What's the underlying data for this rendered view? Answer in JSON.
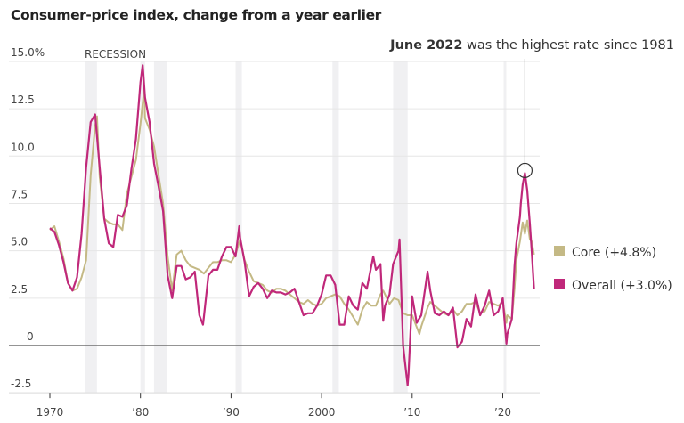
{
  "chart_data": {
    "type": "line",
    "title": "Consumer-price index, change from a year earlier",
    "ylim": [
      -2.5,
      15
    ],
    "xlim": [
      1969.5,
      2024
    ],
    "y_ticks": [
      {
        "value": 15,
        "label": "15.0%"
      },
      {
        "value": 12.5,
        "label": "12.5"
      },
      {
        "value": 10,
        "label": "10.0"
      },
      {
        "value": 7.5,
        "label": "7.5"
      },
      {
        "value": 5,
        "label": "5.0"
      },
      {
        "value": 2.5,
        "label": "2.5"
      },
      {
        "value": 0,
        "label": "0"
      },
      {
        "value": -2.5,
        "label": "-2.5"
      }
    ],
    "x_ticks": [
      {
        "value": 1970,
        "label": "1970"
      },
      {
        "value": 1980,
        "label": "’80"
      },
      {
        "value": 1990,
        "label": "’90"
      },
      {
        "value": 2000,
        "label": "2000"
      },
      {
        "value": 2010,
        "label": "’10"
      },
      {
        "value": 2020,
        "label": "’20"
      }
    ],
    "grid": true,
    "recession_label": "RECESSION",
    "recessions": [
      [
        1973.9,
        1975.2
      ],
      [
        1980.0,
        1980.5
      ],
      [
        1981.5,
        1982.9
      ],
      [
        1990.5,
        1991.2
      ],
      [
        2001.2,
        2001.9
      ],
      [
        2007.9,
        2009.5
      ],
      [
        2020.1,
        2020.3
      ]
    ],
    "annotation": {
      "bold": "June 2022",
      "text": " was the highest rate since 1981",
      "x": 2022.45,
      "y": 9.1
    },
    "legend_placement": "right",
    "series": [
      {
        "name": "Core (+4.8%)",
        "color": "#c4b985",
        "x": [
          1970,
          1970.5,
          1971,
          1971.5,
          1972,
          1972.5,
          1973,
          1973.5,
          1974,
          1974.5,
          1975,
          1975.2,
          1975.5,
          1976,
          1976.5,
          1977,
          1977.5,
          1978,
          1978.5,
          1979,
          1979.5,
          1980,
          1980.4,
          1980.5,
          1981,
          1981.5,
          1982,
          1982.5,
          1983,
          1983.5,
          1984,
          1984.5,
          1985,
          1985.5,
          1986,
          1986.5,
          1987,
          1987.5,
          1988,
          1988.5,
          1989,
          1989.5,
          1990,
          1990.5,
          1991,
          1991.5,
          1992,
          1992.5,
          1993,
          1993.5,
          1994,
          1994.5,
          1995,
          1995.5,
          1996,
          1996.5,
          1997,
          1997.5,
          1998,
          1998.5,
          1999,
          1999.5,
          2000,
          2000.5,
          2001,
          2001.5,
          2002,
          2002.5,
          2003,
          2003.5,
          2004,
          2004.5,
          2005,
          2005.5,
          2006,
          2006.5,
          2006.8,
          2007,
          2007.5,
          2008,
          2008.5,
          2009,
          2009.5,
          2010,
          2010.8,
          2011,
          2011.7,
          2012,
          2012.5,
          2013,
          2013.5,
          2014,
          2014.5,
          2015,
          2015.5,
          2016,
          2016.5,
          2017,
          2017.5,
          2018,
          2018.5,
          2019,
          2019.5,
          2020,
          2020.4,
          2020.5,
          2021,
          2021.3,
          2021.5,
          2021.9,
          2022.2,
          2022.45,
          2022.7,
          2023,
          2023.2,
          2023.45
        ],
        "values": [
          6.1,
          6.3,
          5.5,
          4.6,
          3.3,
          2.9,
          3.0,
          3.6,
          4.5,
          9.0,
          11.6,
          12.1,
          8.9,
          6.7,
          6.5,
          6.4,
          6.4,
          6.1,
          8.0,
          8.9,
          9.8,
          11.7,
          13.5,
          12.0,
          11.4,
          10.5,
          9.0,
          7.5,
          4.7,
          2.9,
          4.8,
          5.0,
          4.5,
          4.2,
          4.1,
          4.0,
          3.8,
          4.1,
          4.4,
          4.4,
          4.5,
          4.5,
          4.4,
          4.8,
          5.6,
          4.5,
          3.9,
          3.4,
          3.3,
          3.2,
          2.9,
          2.8,
          3.0,
          3.0,
          2.9,
          2.7,
          2.5,
          2.3,
          2.2,
          2.4,
          2.2,
          2.1,
          2.2,
          2.5,
          2.6,
          2.7,
          2.6,
          2.2,
          1.9,
          1.5,
          1.1,
          1.9,
          2.3,
          2.1,
          2.1,
          2.7,
          2.9,
          2.7,
          2.2,
          2.5,
          2.4,
          1.7,
          1.6,
          1.6,
          0.6,
          1.0,
          2.0,
          2.3,
          2.1,
          1.9,
          1.7,
          1.6,
          1.9,
          1.6,
          1.8,
          2.2,
          2.2,
          2.3,
          1.7,
          1.8,
          2.3,
          2.2,
          2.1,
          2.3,
          1.2,
          1.6,
          1.4,
          3.0,
          4.5,
          5.5,
          6.5,
          5.9,
          6.6,
          5.6,
          5.5,
          4.8
        ]
      },
      {
        "name": "Overall (+3.0%)",
        "color": "#c0287a",
        "x": [
          1970,
          1970.5,
          1971,
          1971.5,
          1972,
          1972.5,
          1973,
          1973.5,
          1974,
          1974.5,
          1975,
          1975.5,
          1976,
          1976.5,
          1977,
          1977.5,
          1978,
          1978.5,
          1979,
          1979.5,
          1980,
          1980.25,
          1980.5,
          1981,
          1981.5,
          1982,
          1982.5,
          1983,
          1983.5,
          1984,
          1984.5,
          1985,
          1985.5,
          1986,
          1986.5,
          1986.9,
          1987,
          1987.5,
          1988,
          1988.5,
          1989,
          1989.5,
          1990,
          1990.5,
          1990.9,
          1991,
          1991.5,
          1992,
          1992.5,
          1993,
          1993.5,
          1994,
          1994.5,
          1995,
          1995.5,
          1996,
          1996.5,
          1997,
          1997.5,
          1998,
          1998.5,
          1999,
          1999.5,
          2000,
          2000.5,
          2001,
          2001.5,
          2002,
          2002.5,
          2003,
          2003.5,
          2004,
          2004.5,
          2005,
          2005.7,
          2006,
          2006.5,
          2006.8,
          2007,
          2007.5,
          2007.9,
          2008.5,
          2008.6,
          2009,
          2009.5,
          2009.6,
          2010,
          2010.5,
          2011,
          2011.7,
          2012,
          2012.5,
          2013,
          2013.5,
          2014,
          2014.5,
          2015,
          2015.5,
          2016,
          2016.5,
          2017,
          2017.5,
          2018,
          2018.5,
          2019,
          2019.5,
          2020,
          2020.4,
          2020.5,
          2021,
          2021.3,
          2021.5,
          2021.9,
          2022,
          2022.2,
          2022.45,
          2022.7,
          2023,
          2023.2,
          2023.45
        ],
        "values": [
          6.2,
          6.0,
          5.3,
          4.4,
          3.3,
          2.9,
          3.6,
          5.9,
          9.4,
          11.8,
          12.2,
          9.4,
          6.7,
          5.4,
          5.2,
          6.9,
          6.8,
          7.4,
          9.3,
          10.9,
          13.9,
          14.8,
          13.1,
          11.8,
          9.6,
          8.4,
          7.1,
          3.7,
          2.5,
          4.2,
          4.2,
          3.5,
          3.6,
          3.9,
          1.6,
          1.1,
          1.5,
          3.7,
          4.0,
          4.0,
          4.7,
          5.2,
          5.2,
          4.7,
          6.3,
          5.7,
          4.4,
          2.6,
          3.1,
          3.3,
          3.0,
          2.5,
          2.9,
          2.8,
          2.8,
          2.7,
          2.8,
          3.0,
          2.3,
          1.6,
          1.7,
          1.7,
          2.1,
          2.7,
          3.7,
          3.7,
          3.2,
          1.1,
          1.1,
          2.6,
          2.1,
          1.9,
          3.3,
          3.0,
          4.7,
          4.0,
          4.3,
          1.3,
          2.1,
          2.7,
          4.3,
          5.0,
          5.6,
          0.0,
          -2.1,
          -1.5,
          2.6,
          1.2,
          1.6,
          3.9,
          2.9,
          1.7,
          1.6,
          1.8,
          1.6,
          2.0,
          -0.1,
          0.2,
          1.4,
          1.0,
          2.7,
          1.6,
          2.1,
          2.9,
          1.6,
          1.8,
          2.5,
          0.1,
          0.6,
          1.4,
          4.2,
          5.4,
          6.8,
          7.5,
          8.5,
          9.1,
          8.2,
          6.4,
          5.0,
          3.0
        ]
      }
    ]
  }
}
